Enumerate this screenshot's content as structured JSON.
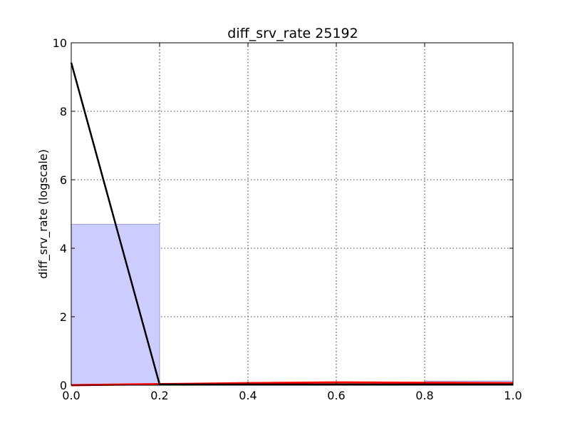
{
  "chart_data": {
    "type": "histogram",
    "title": "diff_srv_rate 25192",
    "xlabel": "",
    "ylabel": "diff_srv_rate (logscale)",
    "xlim": [
      0.0,
      1.0
    ],
    "ylim": [
      0,
      10
    ],
    "grid": true,
    "xticks": [
      "0.0",
      "0.2",
      "0.4",
      "0.6",
      "0.8",
      "1.0"
    ],
    "yticks": [
      "0",
      "2",
      "4",
      "6",
      "8",
      "10"
    ],
    "colors": {
      "hist_fill": "#ccccff",
      "hist_edge": "#a0a0c8",
      "line_black": "#000000",
      "line_red": "#ff0000"
    },
    "histogram_bins": [
      {
        "x0": 0.0,
        "x1": 0.2,
        "value": 4.7
      },
      {
        "x0": 0.2,
        "x1": 0.4,
        "value": 0.0
      },
      {
        "x0": 0.4,
        "x1": 0.6,
        "value": 0.0
      },
      {
        "x0": 0.6,
        "x1": 0.8,
        "value": 0.0
      },
      {
        "x0": 0.8,
        "x1": 1.0,
        "value": 0.12
      }
    ],
    "series": [
      {
        "color": "black",
        "x": [
          0.0,
          0.2,
          0.4,
          0.6,
          0.8,
          1.0
        ],
        "y": [
          9.42,
          0.02,
          0.02,
          0.02,
          0.02,
          0.02
        ]
      },
      {
        "color": "red",
        "x": [
          0.0,
          0.2,
          0.4,
          0.6,
          0.8,
          1.0
        ],
        "y": [
          0.0,
          0.03,
          0.06,
          0.08,
          0.07,
          0.06
        ]
      }
    ]
  }
}
